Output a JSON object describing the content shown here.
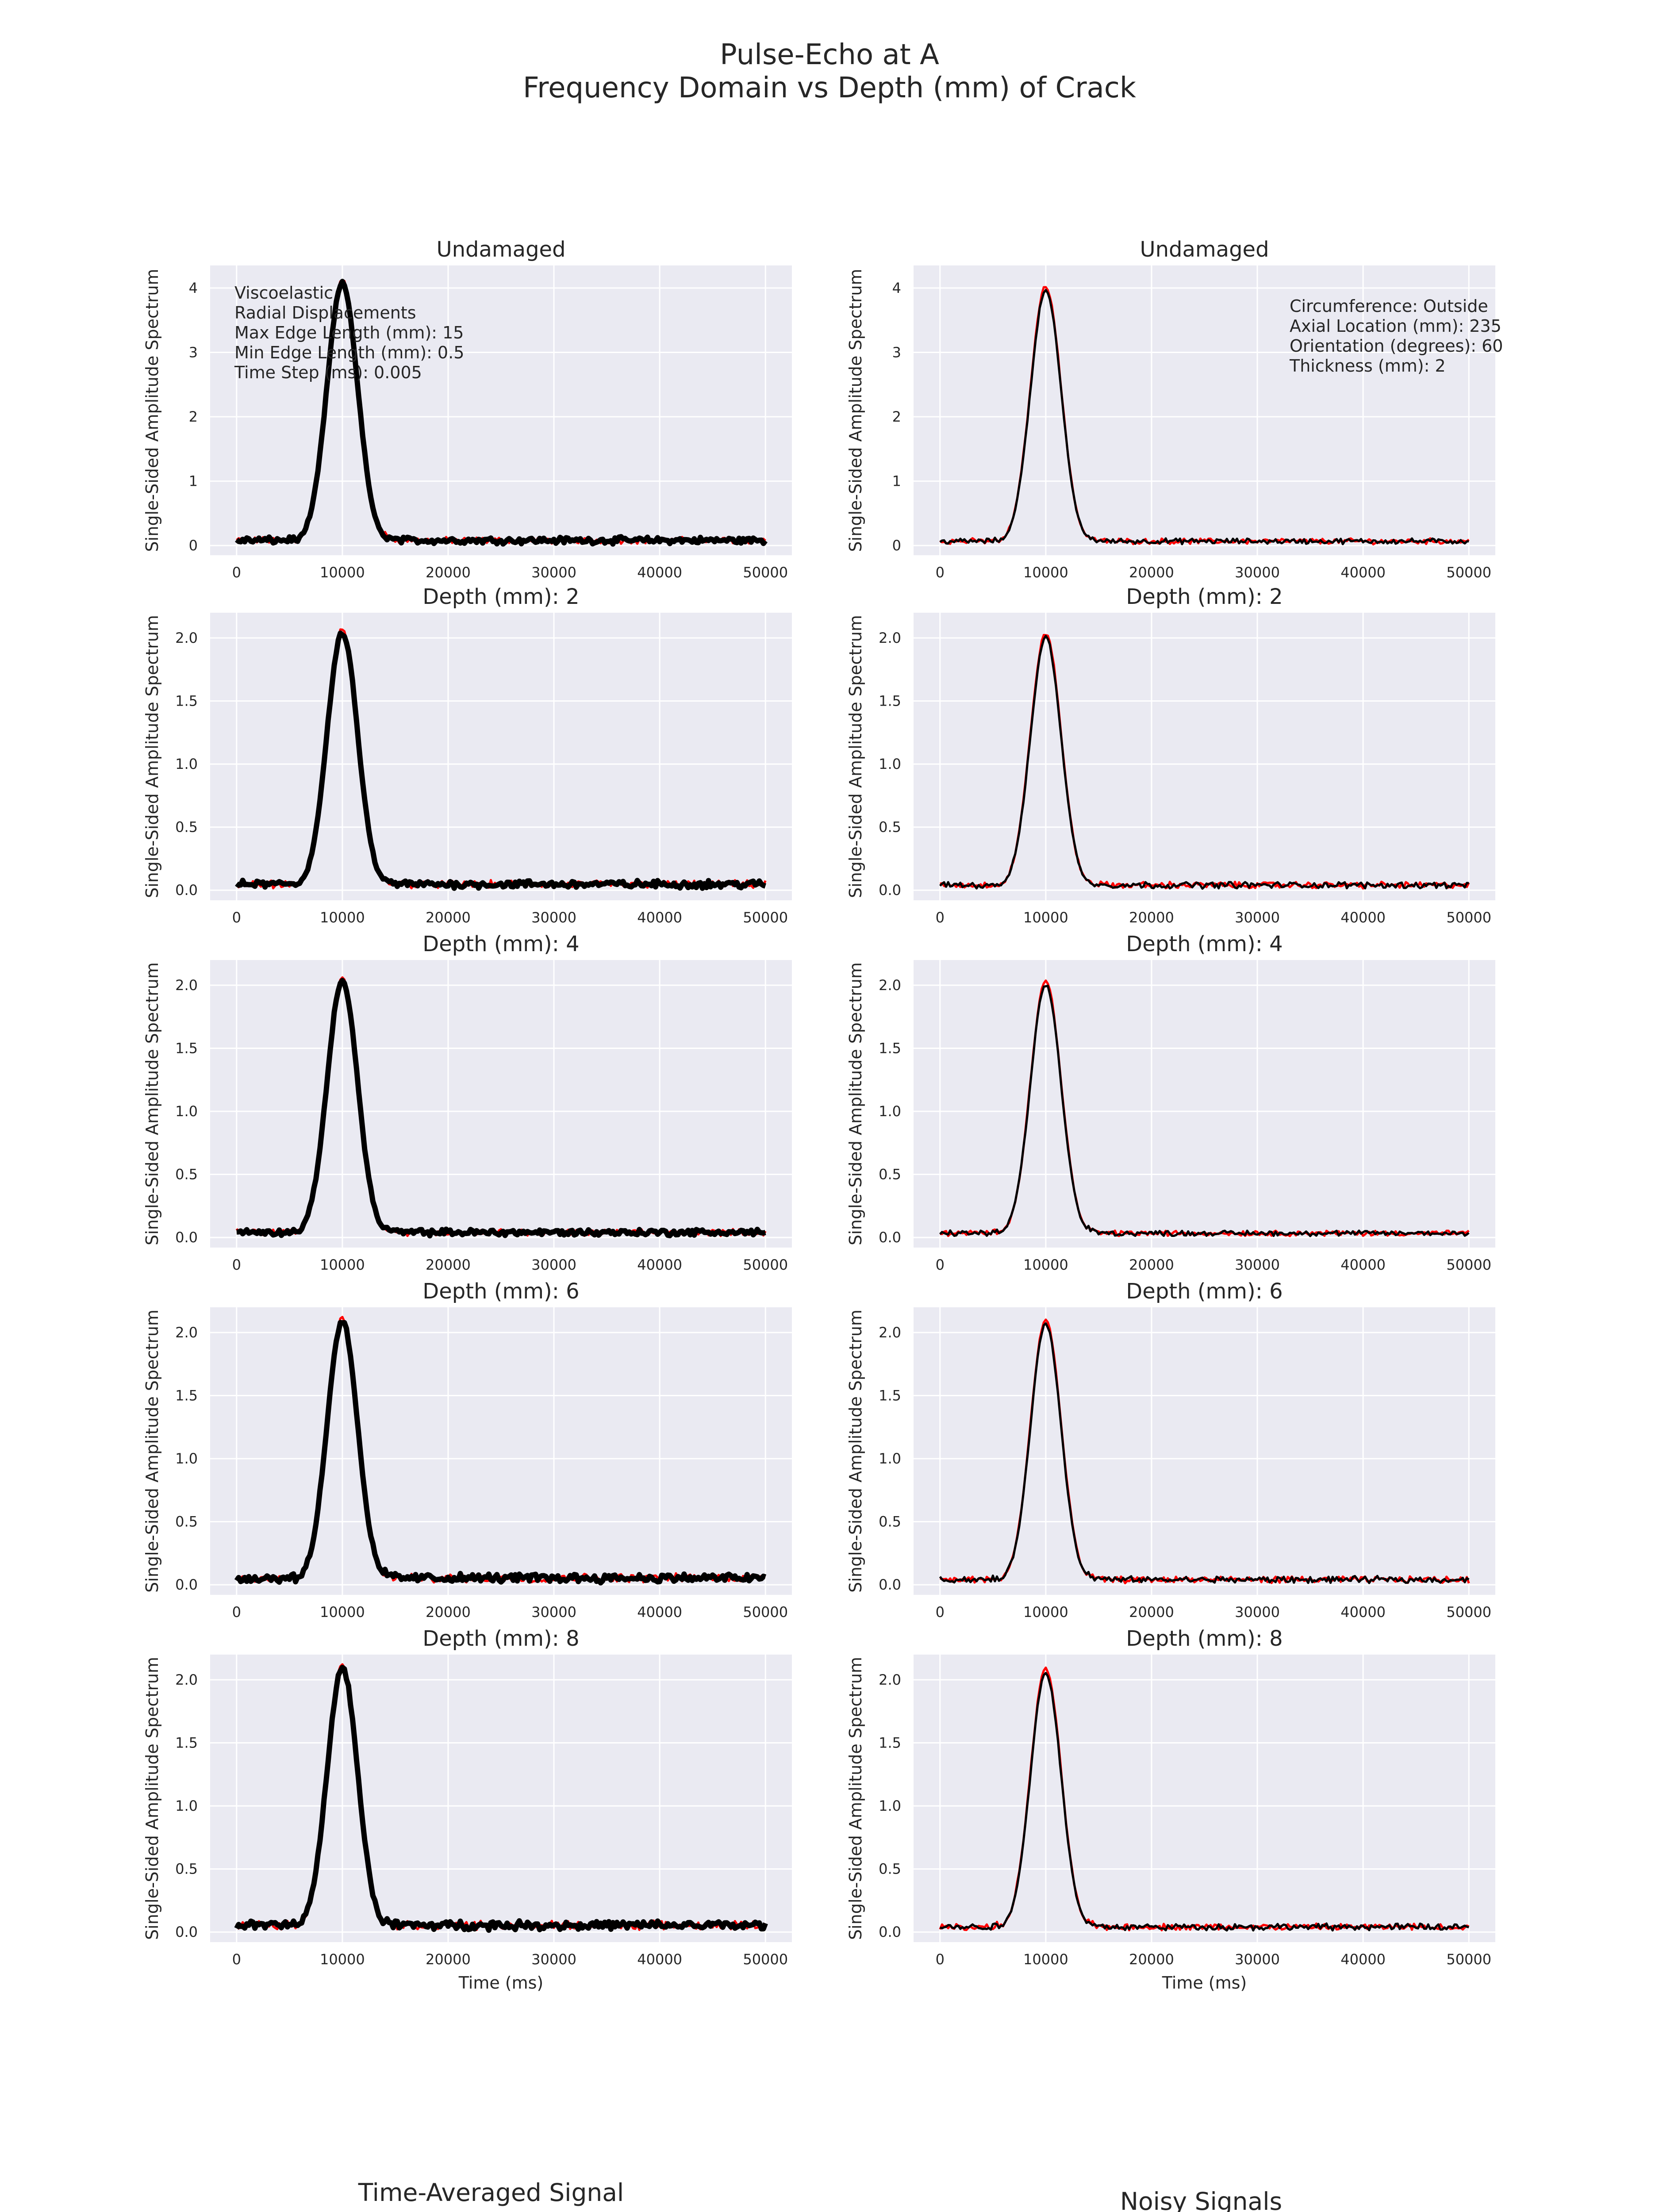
{
  "figure": {
    "title_line1": "Pulse-Echo at A",
    "title_line2": "Frequency Domain vs Depth (mm) of Crack",
    "left_column_title": "Time-Averaged Signal",
    "right_column_title": "Noisy Signals"
  },
  "annotations": {
    "left": [
      "Viscoelastic",
      "Radial Displacements",
      "Max Edge Length (mm): 15",
      "Min Edge Length (mm): 0.5",
      "Time Step (ms): 0.005"
    ],
    "right": [
      "Circumference: Outside",
      "Axial Location (mm): 235",
      "Orientation (degrees): 60",
      "Thickness (mm): 2"
    ]
  },
  "colors": {
    "panel_bg": "#eaeaf2",
    "grid": "#ffffff",
    "series_red": "#ff0000",
    "series_black": "#000000"
  },
  "chart_data": [
    {
      "type": "line",
      "column": "left",
      "title": "Undamaged",
      "ylabel": "Single-Sided Amplitude Spectrum",
      "xlabel": "",
      "xlim": [
        -2500,
        52500
      ],
      "ylim": [
        -0.15,
        4.35
      ],
      "xticks": [
        0,
        10000,
        20000,
        30000,
        40000,
        50000
      ],
      "yticks": [
        0,
        1,
        2,
        3,
        4
      ],
      "ytick_labels": [
        "0",
        "1",
        "2",
        "3",
        "4"
      ],
      "peak_x": 10000,
      "peak_y": 4.1,
      "noise_level": 0.12,
      "series": [
        {
          "color": "red"
        },
        {
          "color": "black",
          "bold": true
        }
      ]
    },
    {
      "type": "line",
      "column": "right",
      "title": "Undamaged",
      "ylabel": "Single-Sided Amplitude Spectrum",
      "xlabel": "",
      "xlim": [
        -2500,
        52500
      ],
      "ylim": [
        -0.15,
        4.35
      ],
      "xticks": [
        0,
        10000,
        20000,
        30000,
        40000,
        50000
      ],
      "yticks": [
        0,
        1,
        2,
        3,
        4
      ],
      "ytick_labels": [
        "0",
        "1",
        "2",
        "3",
        "4"
      ],
      "peak_x": 10000,
      "peak_y": 4.0,
      "noise_level": 0.1,
      "series": [
        {
          "color": "red"
        },
        {
          "color": "black"
        }
      ]
    },
    {
      "type": "line",
      "column": "left",
      "title": "Depth (mm): 2",
      "ylabel": "Single-Sided Amplitude Spectrum",
      "xlabel": "",
      "xlim": [
        -2500,
        52500
      ],
      "ylim": [
        -0.08,
        2.2
      ],
      "xticks": [
        0,
        10000,
        20000,
        30000,
        40000,
        50000
      ],
      "yticks": [
        0,
        0.5,
        1,
        1.5,
        2
      ],
      "ytick_labels": [
        "0.0",
        "0.5",
        "1.0",
        "1.5",
        "2.0"
      ],
      "peak_x": 10000,
      "peak_y": 2.05,
      "noise_level": 0.07,
      "series": [
        {
          "color": "red"
        },
        {
          "color": "black",
          "bold": true
        }
      ]
    },
    {
      "type": "line",
      "column": "right",
      "title": "Depth (mm): 2",
      "ylabel": "Single-Sided Amplitude Spectrum",
      "xlabel": "",
      "xlim": [
        -2500,
        52500
      ],
      "ylim": [
        -0.08,
        2.2
      ],
      "xticks": [
        0,
        10000,
        20000,
        30000,
        40000,
        50000
      ],
      "yticks": [
        0,
        0.5,
        1,
        1.5,
        2
      ],
      "ytick_labels": [
        "0.0",
        "0.5",
        "1.0",
        "1.5",
        "2.0"
      ],
      "peak_x": 10000,
      "peak_y": 2.02,
      "noise_level": 0.06,
      "series": [
        {
          "color": "red"
        },
        {
          "color": "black"
        }
      ]
    },
    {
      "type": "line",
      "column": "left",
      "title": "Depth (mm): 4",
      "ylabel": "Single-Sided Amplitude Spectrum",
      "xlabel": "",
      "xlim": [
        -2500,
        52500
      ],
      "ylim": [
        -0.08,
        2.2
      ],
      "xticks": [
        0,
        10000,
        20000,
        30000,
        40000,
        50000
      ],
      "yticks": [
        0,
        0.5,
        1,
        1.5,
        2
      ],
      "ytick_labels": [
        "0.0",
        "0.5",
        "1.0",
        "1.5",
        "2.0"
      ],
      "peak_x": 10000,
      "peak_y": 2.05,
      "noise_level": 0.06,
      "series": [
        {
          "color": "red"
        },
        {
          "color": "black",
          "bold": true
        }
      ]
    },
    {
      "type": "line",
      "column": "right",
      "title": "Depth (mm): 4",
      "ylabel": "Single-Sided Amplitude Spectrum",
      "xlabel": "",
      "xlim": [
        -2500,
        52500
      ],
      "ylim": [
        -0.08,
        2.2
      ],
      "xticks": [
        0,
        10000,
        20000,
        30000,
        40000,
        50000
      ],
      "yticks": [
        0,
        0.5,
        1,
        1.5,
        2
      ],
      "ytick_labels": [
        "0.0",
        "0.5",
        "1.0",
        "1.5",
        "2.0"
      ],
      "peak_x": 10000,
      "peak_y": 2.02,
      "noise_level": 0.05,
      "series": [
        {
          "color": "red"
        },
        {
          "color": "black"
        }
      ]
    },
    {
      "type": "line",
      "column": "left",
      "title": "Depth (mm): 6",
      "ylabel": "Single-Sided Amplitude Spectrum",
      "xlabel": "",
      "xlim": [
        -2500,
        52500
      ],
      "ylim": [
        -0.08,
        2.2
      ],
      "xticks": [
        0,
        10000,
        20000,
        30000,
        40000,
        50000
      ],
      "yticks": [
        0,
        0.5,
        1,
        1.5,
        2
      ],
      "ytick_labels": [
        "0.0",
        "0.5",
        "1.0",
        "1.5",
        "2.0"
      ],
      "peak_x": 10000,
      "peak_y": 2.1,
      "noise_level": 0.08,
      "series": [
        {
          "color": "red"
        },
        {
          "color": "black",
          "bold": true
        }
      ]
    },
    {
      "type": "line",
      "column": "right",
      "title": "Depth (mm): 6",
      "ylabel": "Single-Sided Amplitude Spectrum",
      "xlabel": "",
      "xlim": [
        -2500,
        52500
      ],
      "ylim": [
        -0.08,
        2.2
      ],
      "xticks": [
        0,
        10000,
        20000,
        30000,
        40000,
        50000
      ],
      "yticks": [
        0,
        0.5,
        1,
        1.5,
        2
      ],
      "ytick_labels": [
        "0.0",
        "0.5",
        "1.0",
        "1.5",
        "2.0"
      ],
      "peak_x": 10000,
      "peak_y": 2.08,
      "noise_level": 0.06,
      "series": [
        {
          "color": "red"
        },
        {
          "color": "black"
        }
      ]
    },
    {
      "type": "line",
      "column": "left",
      "title": "Depth (mm): 8",
      "ylabel": "Single-Sided Amplitude Spectrum",
      "xlabel": "Time (ms)",
      "xlim": [
        -2500,
        52500
      ],
      "ylim": [
        -0.08,
        2.2
      ],
      "xticks": [
        0,
        10000,
        20000,
        30000,
        40000,
        50000
      ],
      "yticks": [
        0,
        0.5,
        1,
        1.5,
        2
      ],
      "ytick_labels": [
        "0.0",
        "0.5",
        "1.0",
        "1.5",
        "2.0"
      ],
      "peak_x": 10000,
      "peak_y": 2.1,
      "noise_level": 0.08,
      "series": [
        {
          "color": "red"
        },
        {
          "color": "black",
          "bold": true
        }
      ]
    },
    {
      "type": "line",
      "column": "right",
      "title": "Depth (mm): 8",
      "ylabel": "Single-Sided Amplitude Spectrum",
      "xlabel": "Time (ms)",
      "xlim": [
        -2500,
        52500
      ],
      "ylim": [
        -0.08,
        2.2
      ],
      "xticks": [
        0,
        10000,
        20000,
        30000,
        40000,
        50000
      ],
      "yticks": [
        0,
        0.5,
        1,
        1.5,
        2
      ],
      "ytick_labels": [
        "0.0",
        "0.5",
        "1.0",
        "1.5",
        "2.0"
      ],
      "peak_x": 10000,
      "peak_y": 2.07,
      "noise_level": 0.06,
      "series": [
        {
          "color": "red"
        },
        {
          "color": "black"
        }
      ]
    }
  ]
}
